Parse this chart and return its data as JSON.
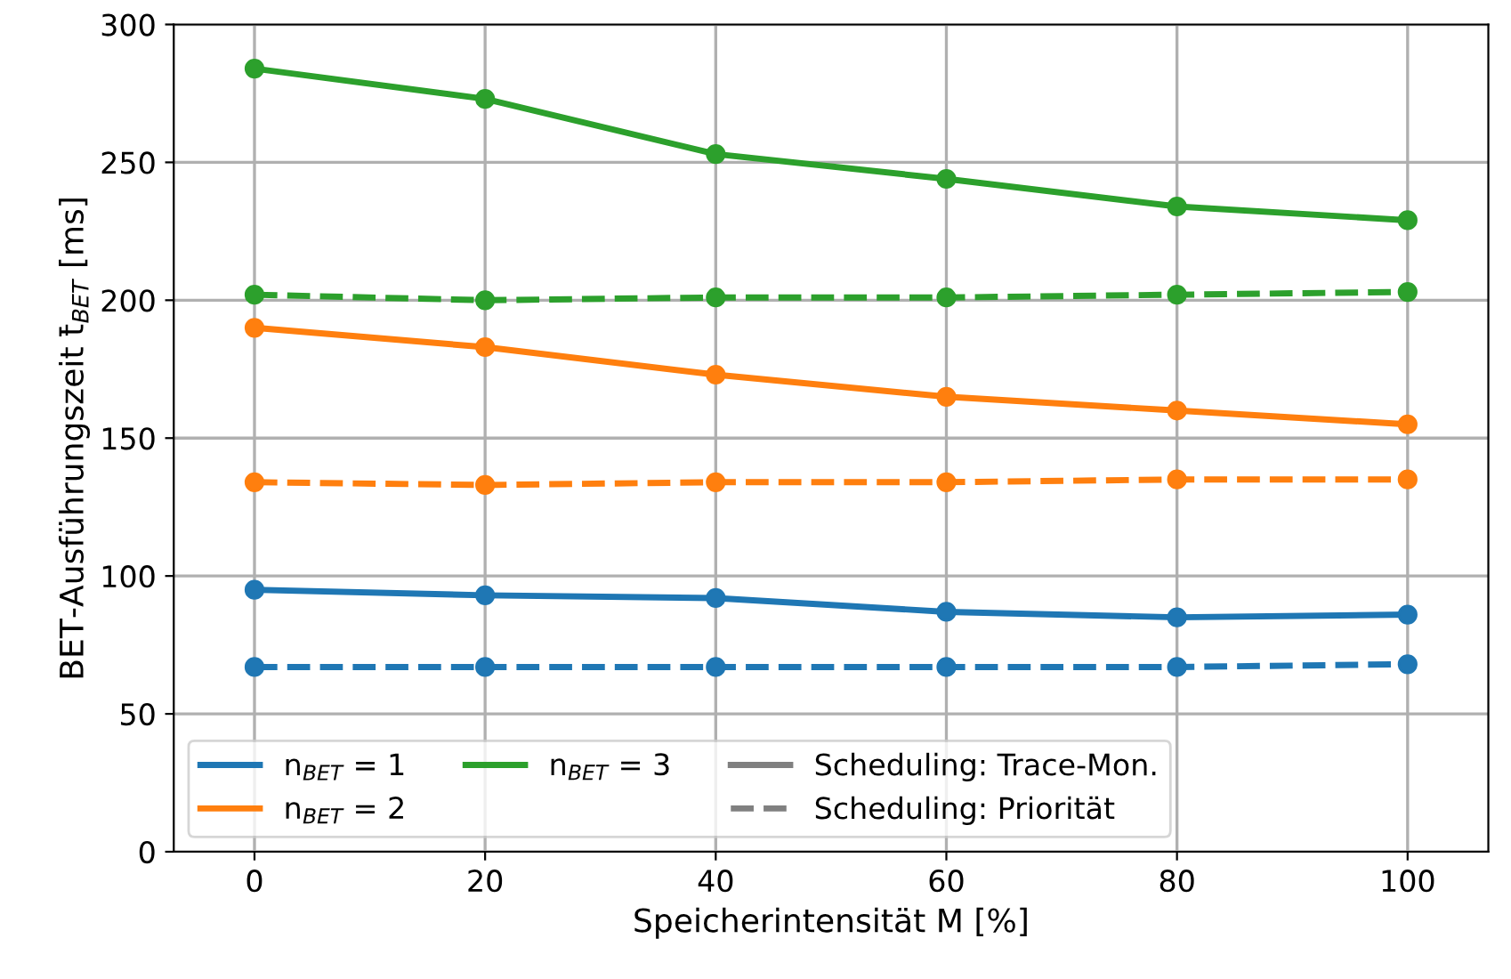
{
  "chart_data": {
    "type": "line",
    "xlabel": "Speicherintensität M [%]",
    "ylabel": "BET-Ausführungszeit t̄$_{BET}$ [ms]",
    "x": [
      0,
      20,
      40,
      60,
      80,
      100
    ],
    "xlim": [
      -7,
      107
    ],
    "xticks": [
      0,
      20,
      40,
      60,
      80,
      100
    ],
    "ylim": [
      0,
      300
    ],
    "yticks": [
      0,
      50,
      100,
      150,
      200,
      250,
      300
    ],
    "grid": true,
    "legend": "bottom left",
    "marker": "circle",
    "series": [
      {
        "name": "n$_{BET}$ = 1",
        "color": "#1f77b4",
        "line_style": "solid",
        "values": [
          95,
          93,
          92,
          87,
          85,
          86
        ]
      },
      {
        "name": "n$_{BET}$ = 2",
        "color": "#ff7f0e",
        "line_style": "solid",
        "values": [
          190,
          183,
          173,
          165,
          160,
          155
        ]
      },
      {
        "name": "n$_{BET}$ = 3",
        "color": "#2ca02c",
        "line_style": "solid",
        "values": [
          284,
          273,
          253,
          244,
          234,
          229
        ]
      },
      {
        "color": "#1f77b4",
        "line_style": "dashed",
        "values": [
          67,
          67,
          67,
          67,
          67,
          68
        ]
      },
      {
        "color": "#ff7f0e",
        "line_style": "dashed",
        "values": [
          134,
          133,
          134,
          134,
          135,
          135
        ]
      },
      {
        "color": "#2ca02c",
        "line_style": "dashed",
        "values": [
          202,
          200,
          201,
          201,
          202,
          203
        ]
      },
      {
        "name": "Scheduling: Trace-Mon.",
        "color": "#808080",
        "line_style": "solid",
        "values": [
          null,
          null,
          null,
          null,
          null,
          null
        ]
      },
      {
        "name": "Scheduling: Priorität",
        "color": "#808080",
        "line_style": "dashed",
        "values": [
          null,
          null,
          null,
          null,
          null,
          null
        ]
      }
    ]
  }
}
